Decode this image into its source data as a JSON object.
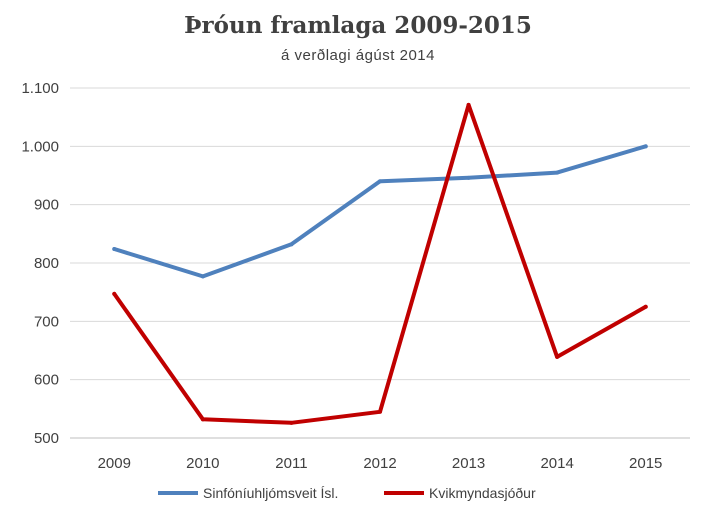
{
  "chart_data": {
    "type": "line",
    "title": "Þróun framlaga 2009-2015",
    "subtitle": "á verðlagi ágúst 2014",
    "categories": [
      "2009",
      "2010",
      "2011",
      "2012",
      "2013",
      "2014",
      "2015"
    ],
    "ylim": [
      500,
      1100
    ],
    "yticks": [
      500,
      600,
      700,
      800,
      900,
      1000,
      1100
    ],
    "ytick_labels": [
      "500",
      "600",
      "700",
      "800",
      "900",
      "1.000",
      "1.100"
    ],
    "grid": true,
    "legend_position": "bottom",
    "series": [
      {
        "name": "Sinfóníuhljómsveit Ísl.",
        "color": "#4f81bd",
        "values": [
          824,
          777,
          832,
          940,
          946,
          955,
          1000
        ]
      },
      {
        "name": "Kvikmyndasjóður",
        "color": "#c00000",
        "values": [
          747,
          532,
          526,
          545,
          1071,
          639,
          725
        ]
      }
    ]
  }
}
